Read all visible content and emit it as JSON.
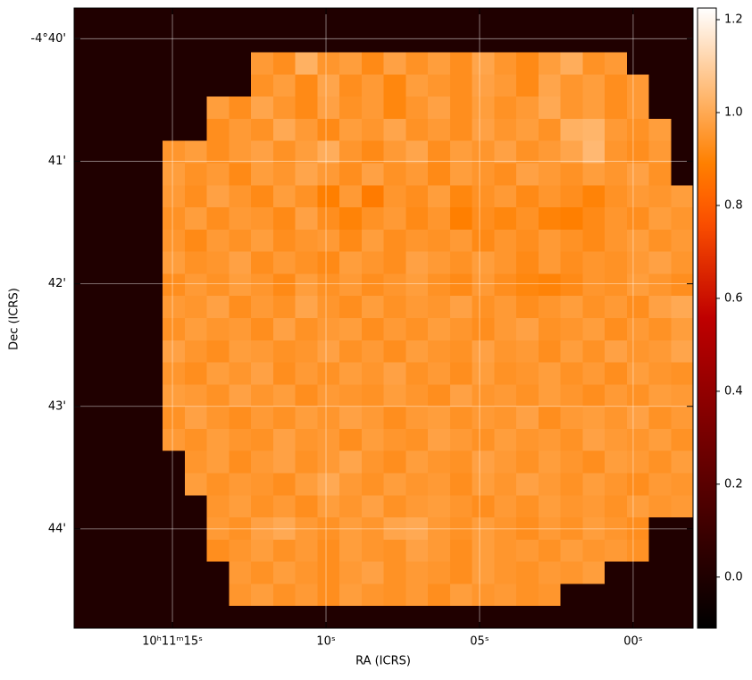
{
  "chart_data": {
    "type": "image",
    "xlabel": "RA (ICRS)",
    "ylabel": "Dec (ICRS)",
    "xlim": [
      18.2,
      -1.95
    ],
    "xticks": [
      {
        "value": 15,
        "label": "10ʰ11ᵐ15ˢ"
      },
      {
        "value": 10,
        "label": "10ˢ"
      },
      {
        "value": 5,
        "label": "05ˢ"
      },
      {
        "value": 0,
        "label": "00ˢ"
      }
    ],
    "ylim": [
      44.81,
      39.75
    ],
    "yticks": [
      {
        "value": 40,
        "label": "-4°40'"
      },
      {
        "value": 41,
        "label": "41'"
      },
      {
        "value": 42,
        "label": "42'"
      },
      {
        "value": 43,
        "label": "43'"
      },
      {
        "value": 44,
        "label": "44'"
      }
    ],
    "grid": true,
    "colormap": "gist_heat",
    "clim": [
      -0.11,
      1.225
    ],
    "cticks": [
      {
        "value": 0,
        "label": "0.0"
      },
      0.2,
      0.4,
      0.6,
      0.8,
      {
        "value": 1,
        "label": "1.0"
      },
      1.2
    ],
    "image": {
      "values": [
        [
          0,
          0,
          0,
          0,
          0,
          0,
          0,
          0,
          0,
          0,
          0,
          0,
          0,
          0,
          0,
          0,
          0,
          0,
          0,
          0,
          0,
          0,
          0,
          0,
          0,
          0,
          0,
          0
        ],
        [
          0,
          0,
          0,
          0,
          0,
          0,
          0,
          0,
          0,
          0,
          0,
          0,
          0,
          0,
          0,
          0,
          0,
          0,
          0,
          0,
          0,
          0,
          0,
          0,
          0,
          0,
          0,
          0
        ],
        [
          0,
          0,
          0,
          0,
          0,
          0,
          0,
          0,
          0.96,
          0.93,
          1.02,
          0.95,
          0.97,
          0.92,
          0.98,
          0.94,
          0.97,
          0.93,
          0.99,
          0.95,
          0.92,
          0.97,
          1.01,
          0.94,
          0.96,
          0,
          0,
          0
        ],
        [
          0,
          0,
          0,
          0,
          0,
          0,
          0,
          0,
          0.94,
          0.97,
          0.92,
          0.99,
          0.93,
          0.96,
          0.91,
          0.97,
          0.95,
          0.93,
          0.98,
          0.96,
          0.92,
          0.99,
          0.95,
          0.97,
          0.93,
          0.96,
          0,
          0
        ],
        [
          0,
          0,
          0,
          0,
          0,
          0,
          0.97,
          0.93,
          0.99,
          0.95,
          0.92,
          0.98,
          0.94,
          0.96,
          0.91,
          0.95,
          0.98,
          0.93,
          0.97,
          0.94,
          0.96,
          1.0,
          0.95,
          0.97,
          0.93,
          0.96,
          0,
          0
        ],
        [
          0,
          0,
          0,
          0,
          0,
          0,
          0.93,
          0.96,
          0.94,
          1.0,
          0.96,
          0.92,
          0.97,
          0.95,
          0.99,
          0.94,
          0.96,
          0.93,
          0.98,
          0.95,
          0.97,
          0.94,
          1.02,
          1.03,
          0.96,
          0.94,
          0.97,
          0
        ],
        [
          0,
          0,
          0,
          0,
          0.95,
          0.97,
          0.93,
          0.96,
          0.98,
          0.94,
          0.97,
          1.01,
          0.95,
          0.92,
          0.96,
          0.99,
          0.93,
          0.97,
          0.95,
          0.98,
          0.94,
          0.96,
          0.99,
          1.04,
          0.95,
          0.93,
          0.96,
          0
        ],
        [
          0,
          0,
          0,
          0,
          0.97,
          0.94,
          0.96,
          0.92,
          0.97,
          0.95,
          0.99,
          0.96,
          0.93,
          0.98,
          0.94,
          0.96,
          0.92,
          0.97,
          0.95,
          0.93,
          0.98,
          0.96,
          0.94,
          0.97,
          0.95,
          0.98,
          0.94,
          0
        ],
        [
          0,
          0,
          0,
          0,
          0.96,
          0.93,
          0.98,
          0.95,
          0.92,
          0.97,
          0.94,
          0.89,
          0.96,
          0.88,
          0.95,
          0.93,
          0.97,
          0.91,
          0.94,
          0.96,
          0.92,
          0.95,
          0.93,
          0.9,
          0.94,
          0.96,
          0.95,
          0.97
        ],
        [
          0,
          0,
          0,
          0,
          0.94,
          0.97,
          0.93,
          0.96,
          0.95,
          0.92,
          0.98,
          0.93,
          0.9,
          0.94,
          0.96,
          0.92,
          0.95,
          0.89,
          0.93,
          0.91,
          0.94,
          0.9,
          0.89,
          0.92,
          0.95,
          0.93,
          0.97,
          0.95
        ],
        [
          0,
          0,
          0,
          0,
          0.95,
          0.92,
          0.96,
          0.94,
          0.97,
          0.93,
          0.95,
          0.96,
          0.92,
          0.97,
          0.93,
          0.95,
          0.94,
          0.96,
          0.92,
          0.95,
          0.93,
          0.96,
          0.94,
          0.92,
          0.95,
          0.97,
          0.94,
          0.96
        ],
        [
          0,
          0,
          0,
          0,
          0.97,
          0.94,
          0.95,
          0.98,
          0.93,
          0.96,
          0.94,
          0.92,
          0.97,
          0.95,
          0.93,
          0.98,
          0.96,
          0.94,
          0.97,
          0.95,
          0.92,
          0.96,
          0.93,
          0.95,
          0.94,
          0.96,
          0.98,
          0.95
        ],
        [
          0,
          0,
          0,
          0,
          0.93,
          0.96,
          0.94,
          0.97,
          0.95,
          0.92,
          0.97,
          0.94,
          0.96,
          0.93,
          0.95,
          0.97,
          0.94,
          0.92,
          0.96,
          0.93,
          0.91,
          0.9,
          0.92,
          0.95,
          0.94,
          0.97,
          0.95,
          0.93
        ],
        [
          0,
          0,
          0,
          0,
          0.96,
          0.95,
          0.98,
          0.93,
          0.96,
          0.94,
          0.99,
          0.95,
          0.93,
          0.97,
          0.94,
          0.96,
          0.95,
          0.98,
          0.94,
          0.96,
          0.93,
          0.95,
          0.97,
          0.94,
          0.96,
          0.93,
          0.98,
          1.0
        ],
        [
          0,
          0,
          0,
          0,
          0.94,
          0.97,
          0.95,
          0.96,
          0.93,
          0.98,
          0.94,
          0.96,
          0.97,
          0.93,
          0.96,
          0.94,
          0.97,
          0.95,
          0.93,
          0.96,
          0.98,
          0.94,
          0.95,
          0.97,
          0.93,
          0.96,
          0.94,
          0.97
        ],
        [
          0,
          0,
          0,
          0,
          0.98,
          0.95,
          0.93,
          0.97,
          0.96,
          0.94,
          0.95,
          0.98,
          0.94,
          0.96,
          0.93,
          0.97,
          0.95,
          0.94,
          0.98,
          0.95,
          0.96,
          0.93,
          0.97,
          0.94,
          0.98,
          0.95,
          0.96,
          0.99
        ],
        [
          0,
          0,
          0,
          0,
          0.95,
          0.93,
          0.97,
          0.95,
          0.98,
          0.93,
          0.96,
          0.94,
          0.97,
          0.95,
          0.98,
          0.94,
          0.96,
          0.93,
          0.97,
          0.94,
          0.95,
          0.97,
          0.94,
          0.96,
          0.93,
          0.97,
          0.95,
          0.94
        ],
        [
          0,
          0,
          0,
          0,
          0.97,
          0.96,
          0.94,
          0.98,
          0.95,
          0.97,
          0.93,
          0.96,
          0.95,
          0.94,
          0.97,
          0.95,
          0.93,
          0.98,
          0.95,
          0.96,
          0.94,
          0.97,
          0.95,
          0.93,
          0.96,
          0.94,
          0.97,
          0.96
        ],
        [
          0,
          0,
          0,
          0,
          0.94,
          0.98,
          0.95,
          0.93,
          0.96,
          0.94,
          0.97,
          0.95,
          0.98,
          0.96,
          0.93,
          0.96,
          0.97,
          0.94,
          0.96,
          0.95,
          0.98,
          0.93,
          0.96,
          0.97,
          0.95,
          0.98,
          0.94,
          0.96
        ],
        [
          0,
          0,
          0,
          0,
          0.96,
          0.94,
          0.97,
          0.95,
          0.94,
          0.98,
          0.95,
          0.96,
          0.93,
          0.97,
          0.95,
          0.94,
          0.98,
          0.96,
          0.94,
          0.97,
          0.95,
          0.96,
          0.94,
          0.98,
          0.96,
          0.95,
          0.97,
          0.94
        ],
        [
          0,
          0,
          0,
          0,
          0,
          0.95,
          0.97,
          0.93,
          0.96,
          0.98,
          0.94,
          0.96,
          0.99,
          0.95,
          0.93,
          0.97,
          0.95,
          0.94,
          0.98,
          0.96,
          0.94,
          0.97,
          0.95,
          0.93,
          0.97,
          0.96,
          0.94,
          0.97
        ],
        [
          0,
          0,
          0,
          0,
          0,
          0.97,
          0.94,
          0.96,
          0.95,
          0.93,
          0.97,
          1.0,
          0.96,
          0.94,
          0.97,
          0.95,
          0.96,
          0.93,
          0.97,
          0.95,
          0.98,
          0.96,
          0.94,
          0.97,
          0.95,
          0.93,
          0.96,
          0.95
        ],
        [
          0,
          0,
          0,
          0,
          0,
          0,
          0.95,
          0.97,
          0.94,
          0.96,
          0.93,
          0.97,
          0.95,
          0.98,
          0.94,
          0.96,
          0.97,
          0.95,
          0.93,
          0.96,
          0.94,
          0.97,
          0.95,
          0.96,
          0.94,
          0.97,
          0.95,
          0.96
        ],
        [
          0,
          0,
          0,
          0,
          0,
          0,
          0.96,
          0.94,
          0.98,
          1.0,
          0.96,
          0.94,
          0.97,
          0.95,
          0.99,
          1.0,
          0.96,
          0.94,
          0.97,
          0.95,
          0.93,
          0.96,
          0.94,
          0.97,
          0.95,
          0.93,
          0,
          0
        ],
        [
          0,
          0,
          0,
          0,
          0,
          0,
          0.93,
          0.95,
          0.97,
          0.94,
          0.96,
          0.93,
          0.97,
          0.95,
          0.94,
          0.98,
          0.96,
          0.93,
          0.97,
          0.95,
          0.96,
          0.94,
          0.97,
          0.95,
          0.96,
          0.94,
          0,
          0
        ],
        [
          0,
          0,
          0,
          0,
          0,
          0,
          0,
          0.96,
          0.94,
          0.97,
          0.95,
          0.93,
          0.96,
          0.98,
          0.94,
          0.96,
          0.95,
          0.93,
          0.97,
          0.95,
          0.94,
          0.96,
          0.95,
          0.97,
          0,
          0,
          0,
          0
        ],
        [
          0,
          0,
          0,
          0,
          0,
          0,
          0,
          0.95,
          0.97,
          0.94,
          0.96,
          0.93,
          0.97,
          0.95,
          0.94,
          0.96,
          0.93,
          0.97,
          0.95,
          0.96,
          0.94,
          0.95,
          0,
          0,
          0,
          0,
          0,
          0
        ],
        [
          0,
          0,
          0,
          0,
          0,
          0,
          0,
          0,
          0,
          0,
          0,
          0,
          0,
          0,
          0,
          0,
          0,
          0,
          0,
          0,
          0,
          0,
          0,
          0,
          0,
          0,
          0,
          0
        ]
      ]
    }
  }
}
